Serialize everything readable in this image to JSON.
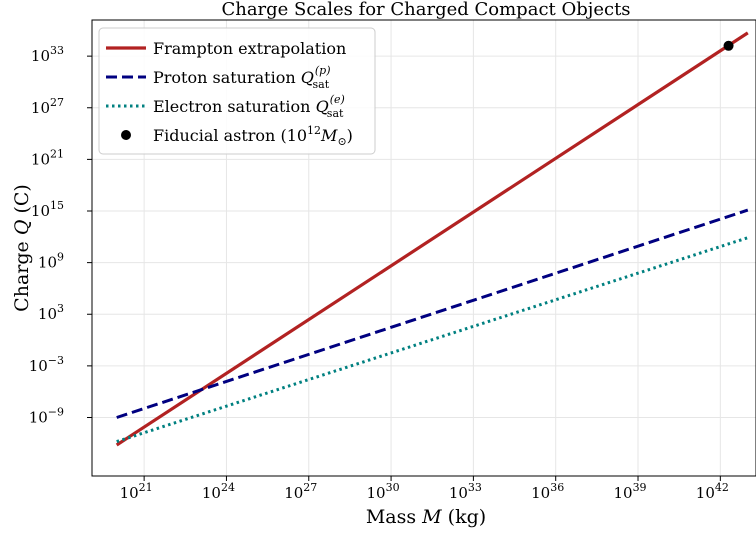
{
  "chart_data": {
    "type": "line",
    "title": "Charge Scales for Charged Compact Objects",
    "xlabel": "Mass $M$ (kg)",
    "xlabel_parts": {
      "pre": "Mass ",
      "var": "M",
      "post": " (kg)"
    },
    "ylabel": "Charge $Q$ (C)",
    "ylabel_parts": {
      "pre": "Charge ",
      "var": "Q",
      "post": " (C)"
    },
    "x_scale": "log",
    "y_scale": "log",
    "xlim_exp": [
      19.1,
      43.3
    ],
    "ylim_exp": [
      -15.8,
      37.2
    ],
    "x_ticks": [
      {
        "exp": 21,
        "label": "21"
      },
      {
        "exp": 24,
        "label": "24"
      },
      {
        "exp": 27,
        "label": "27"
      },
      {
        "exp": 30,
        "label": "30"
      },
      {
        "exp": 33,
        "label": "33"
      },
      {
        "exp": 36,
        "label": "36"
      },
      {
        "exp": 39,
        "label": "39"
      },
      {
        "exp": 42,
        "label": "42"
      }
    ],
    "y_ticks": [
      {
        "exp": -9,
        "label": "−9"
      },
      {
        "exp": -3,
        "label": "−3"
      },
      {
        "exp": 3,
        "label": "3"
      },
      {
        "exp": 9,
        "label": "9"
      },
      {
        "exp": 15,
        "label": "15"
      },
      {
        "exp": 21,
        "label": "21"
      },
      {
        "exp": 27,
        "label": "27"
      },
      {
        "exp": 33,
        "label": "33"
      }
    ],
    "tick_base": "10",
    "grid": true,
    "legend_position": "top-left",
    "series": [
      {
        "name": "Frampton extrapolation",
        "style": "solid",
        "color": "#b22222",
        "points_exp": [
          [
            20,
            -12.2
          ],
          [
            43,
            35.7
          ]
        ]
      },
      {
        "name": "Proton saturation",
        "name_math": "Q",
        "name_sub": "sat",
        "name_sup": "(p)",
        "style": "dashed",
        "color": "#000080",
        "points_exp": [
          [
            20,
            -9
          ],
          [
            43,
            15.1
          ]
        ]
      },
      {
        "name": "Electron saturation",
        "name_math": "Q",
        "name_sub": "sat",
        "name_sup": "(e)",
        "style": "dotted",
        "color": "#008080",
        "points_exp": [
          [
            20,
            -11.8
          ],
          [
            43,
            11.9
          ]
        ]
      }
    ],
    "points": [
      {
        "name": "Fiducial astron",
        "label_main": "Fiducial astron (",
        "label_base": "10",
        "label_exp": "12",
        "label_var": "M",
        "label_sub": "⊙",
        "label_close": ")",
        "color": "#000000",
        "x_exp": 42.3,
        "y_exp": 34.2
      }
    ]
  }
}
